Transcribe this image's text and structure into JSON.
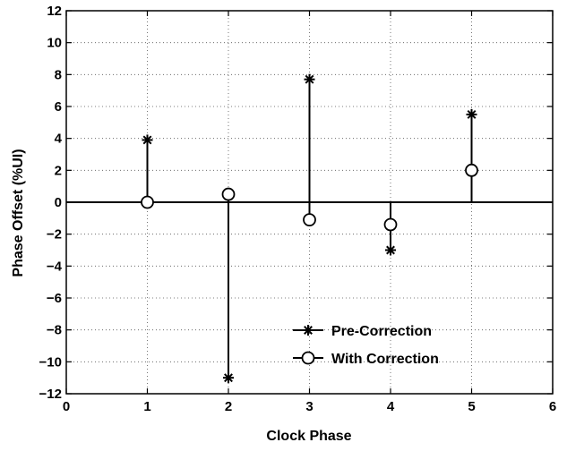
{
  "chart_data": {
    "type": "stem",
    "title": "",
    "xlabel": "Clock Phase",
    "ylabel": "Phase Offset (%UI)",
    "xlim": [
      0,
      6
    ],
    "ylim": [
      -12,
      12
    ],
    "xticks": [
      0,
      1,
      2,
      3,
      4,
      5,
      6
    ],
    "yticks": [
      -12,
      -10,
      -8,
      -6,
      -4,
      -2,
      0,
      2,
      4,
      6,
      8,
      10,
      12
    ],
    "grid": true,
    "legend_position": "bottom-right",
    "x": [
      1,
      2,
      3,
      4,
      5
    ],
    "series": [
      {
        "name": "Pre-Correction",
        "marker": "asterisk",
        "values": [
          3.9,
          -11.0,
          7.7,
          -3.0,
          5.5
        ]
      },
      {
        "name": "With Correction",
        "marker": "circle",
        "values": [
          0.0,
          0.5,
          -1.1,
          -1.4,
          2.0
        ]
      }
    ]
  }
}
